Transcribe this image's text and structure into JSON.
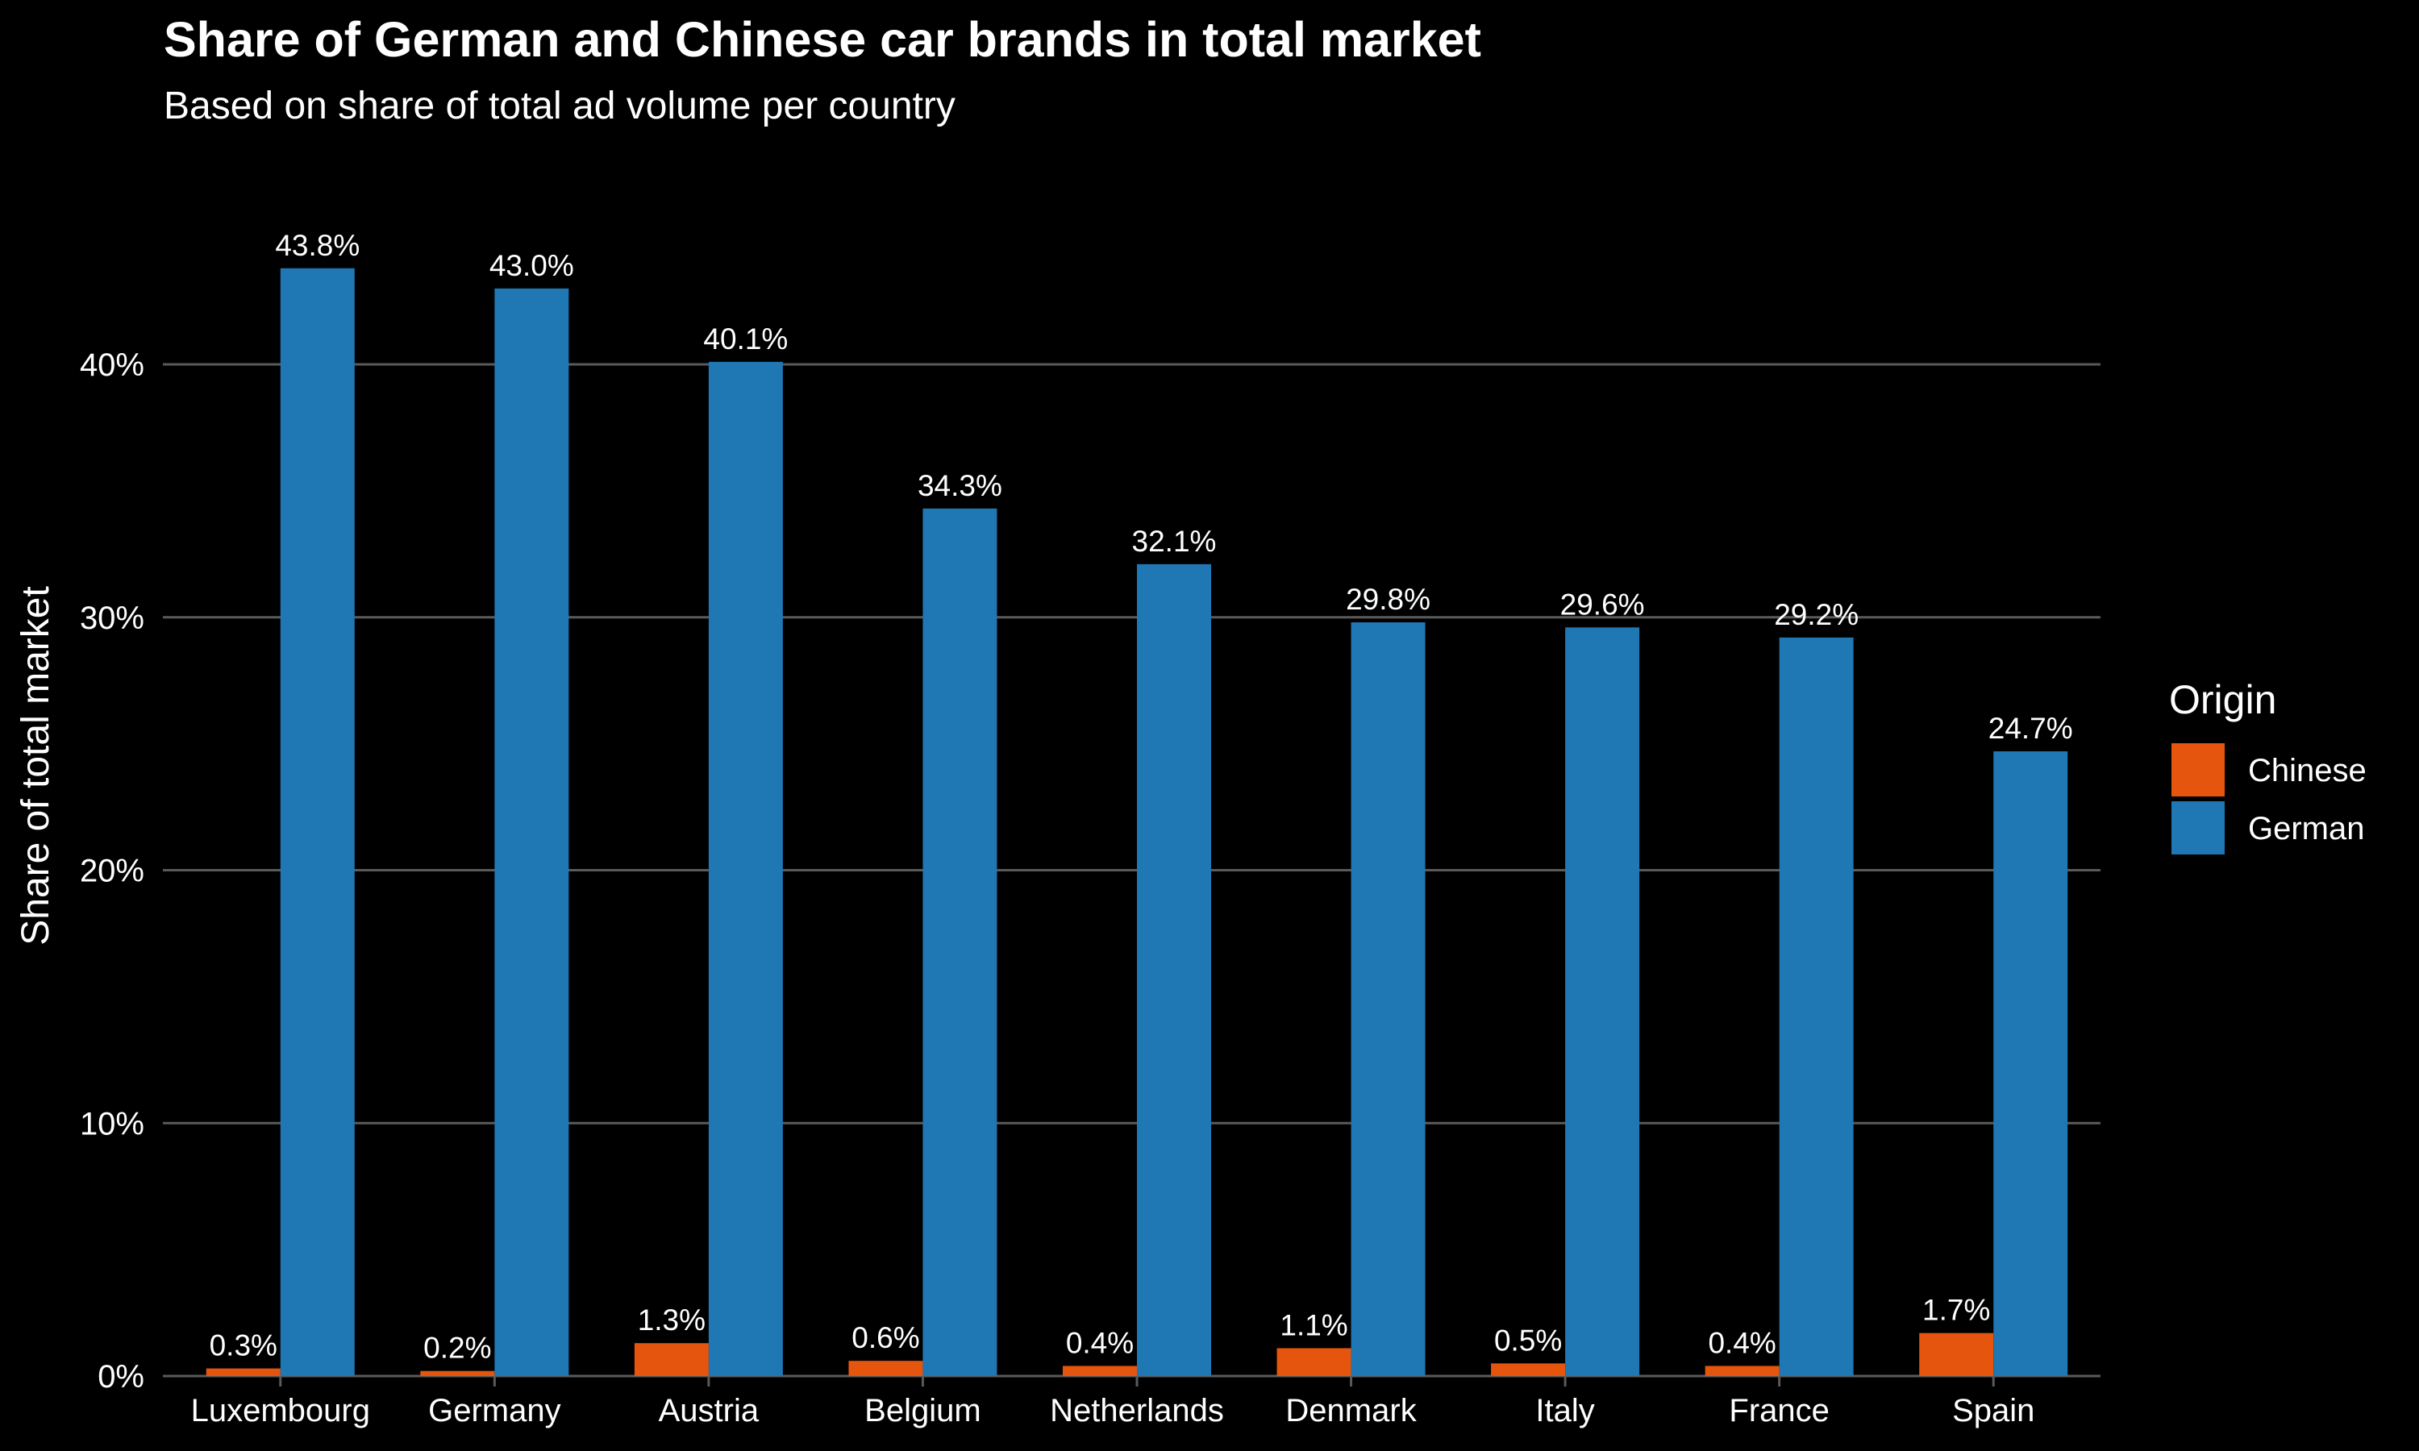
{
  "chart_data": {
    "type": "bar",
    "title": "Share of German and Chinese car brands in total market",
    "subtitle": "Based on share of total ad volume per country",
    "xlabel": "",
    "ylabel": "Share of total market",
    "ylim": [
      0,
      45
    ],
    "yticks": [
      0,
      10,
      20,
      30,
      40
    ],
    "ytick_labels": [
      "0%",
      "10%",
      "20%",
      "30%",
      "40%"
    ],
    "grid": true,
    "legend": {
      "title": "Origin",
      "position": "right"
    },
    "categories": [
      "Luxembourg",
      "Germany",
      "Austria",
      "Belgium",
      "Netherlands",
      "Denmark",
      "Italy",
      "France",
      "Spain"
    ],
    "series": [
      {
        "name": "Chinese",
        "color": "#e6550d",
        "values": [
          0.3,
          0.2,
          1.3,
          0.6,
          0.4,
          1.1,
          0.5,
          0.4,
          1.7
        ],
        "labels": [
          "0.3%",
          "0.2%",
          "1.3%",
          "0.6%",
          "0.4%",
          "1.1%",
          "0.5%",
          "0.4%",
          "1.7%"
        ]
      },
      {
        "name": "German",
        "color": "#1f77b4",
        "values": [
          43.8,
          43.0,
          40.1,
          34.3,
          32.1,
          29.8,
          29.6,
          29.2,
          24.7
        ],
        "labels": [
          "43.8%",
          "43.0%",
          "40.1%",
          "34.3%",
          "32.1%",
          "29.8%",
          "29.6%",
          "29.2%",
          "24.7%"
        ]
      }
    ]
  }
}
